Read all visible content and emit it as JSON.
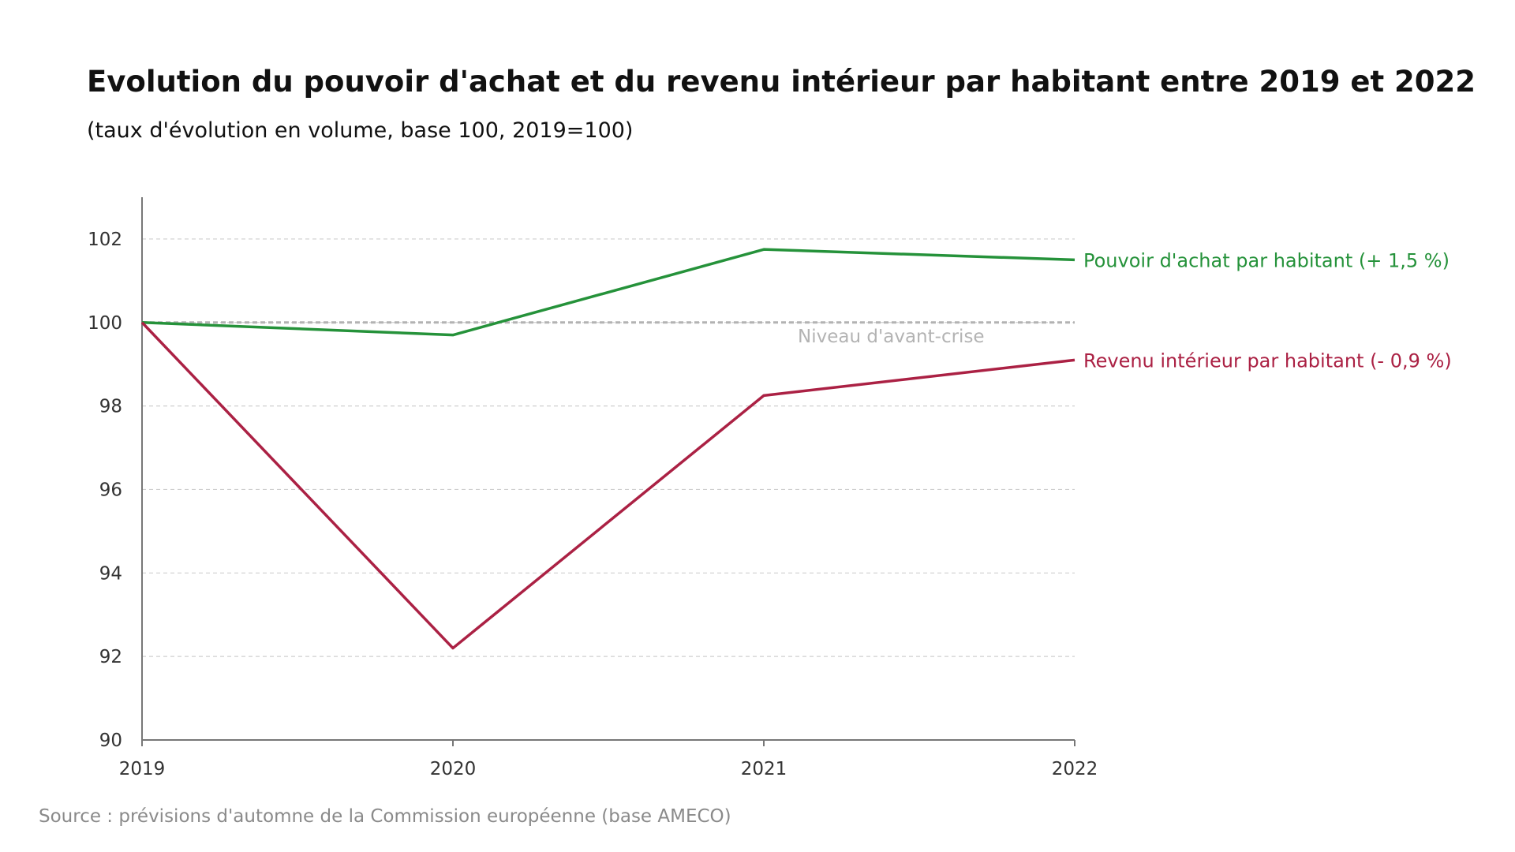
{
  "header": {
    "title": "Evolution du pouvoir d'achat et du revenu intérieur par habitant entre 2019 et 2022",
    "subtitle": "(taux d'évolution en volume, base 100, 2019=100)"
  },
  "footer": {
    "source": "Source : prévisions d'automne de la Commission européenne (base AMECO)"
  },
  "chart_data": {
    "type": "line",
    "x": [
      "2019",
      "2020",
      "2021",
      "2022"
    ],
    "ylim": [
      90,
      103
    ],
    "yticks": [
      90,
      92,
      94,
      96,
      98,
      100,
      102
    ],
    "grid": true,
    "legend": "inline-right",
    "series": [
      {
        "name": "Pouvoir d'achat par habitant (+ 1,5 %)",
        "color": "#25923a",
        "values": [
          100.0,
          99.7,
          101.75,
          101.5
        ]
      },
      {
        "name": "Revenu intérieur par habitant (- 0,9 %)",
        "color": "#ab2144",
        "values": [
          100.0,
          92.2,
          98.25,
          99.1
        ]
      }
    ],
    "reference_line": {
      "value": 100,
      "label": "Niveau d'avant-crise",
      "color": "#b3b3b3"
    }
  }
}
